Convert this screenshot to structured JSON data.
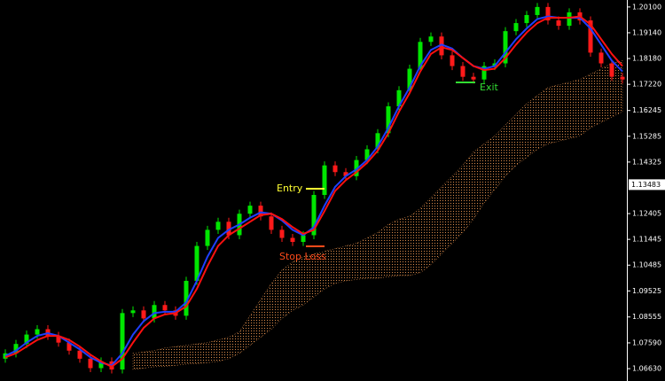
{
  "chart_data": {
    "type": "candlestick",
    "ylim": [
      1.0617,
      1.2036
    ],
    "yticks": [
      {
        "value": 1.201,
        "label": "1.20100"
      },
      {
        "value": 1.1914,
        "label": "1.19140"
      },
      {
        "value": 1.1818,
        "label": "1.18180"
      },
      {
        "value": 1.1722,
        "label": "1.17220"
      },
      {
        "value": 1.16245,
        "label": "1.16245"
      },
      {
        "value": 1.15285,
        "label": "1.15285"
      },
      {
        "value": 1.14325,
        "label": "1.14325"
      },
      {
        "value": 1.12405,
        "label": "1.12405"
      },
      {
        "value": 1.11445,
        "label": "1.11445"
      },
      {
        "value": 1.10485,
        "label": "1.10485"
      },
      {
        "value": 1.09525,
        "label": "1.09525"
      },
      {
        "value": 1.08555,
        "label": "1.08555"
      },
      {
        "value": 1.0759,
        "label": "1.07590"
      },
      {
        "value": 1.0663,
        "label": "1.06630"
      }
    ],
    "current_price": {
      "value": 1.13483,
      "label": "1.13483"
    },
    "up_color": "#00e600",
    "down_color": "#ff1a1a",
    "open": [
      1.07,
      1.072,
      1.0755,
      1.079,
      1.081,
      1.0785,
      1.076,
      1.073,
      1.07,
      1.0665,
      1.069,
      1.066,
      1.087,
      1.088,
      1.085,
      1.09,
      1.088,
      1.086,
      1.099,
      1.112,
      1.118,
      1.121,
      1.116,
      1.124,
      1.127,
      1.123,
      1.118,
      1.115,
      1.1135,
      1.116,
      1.131,
      1.142,
      1.1395,
      1.138,
      1.144,
      1.148,
      1.154,
      1.164,
      1.17,
      1.178,
      1.188,
      1.19,
      1.183,
      1.179,
      1.175,
      1.174,
      1.179,
      1.18,
      1.192,
      1.195,
      1.198,
      1.201,
      1.196,
      1.194,
      1.199,
      1.196,
      1.184,
      1.18,
      1.175
    ],
    "high": [
      1.0735,
      1.077,
      1.0805,
      1.0825,
      1.0825,
      1.08,
      1.0775,
      1.0745,
      1.0715,
      1.0705,
      1.0705,
      1.0885,
      1.0895,
      1.0895,
      1.0915,
      1.0915,
      1.0895,
      1.1005,
      1.1135,
      1.1195,
      1.1225,
      1.1225,
      1.1255,
      1.1285,
      1.1285,
      1.1245,
      1.1195,
      1.1165,
      1.1175,
      1.1325,
      1.1435,
      1.1435,
      1.141,
      1.1455,
      1.1495,
      1.1555,
      1.1655,
      1.1715,
      1.1795,
      1.1895,
      1.1915,
      1.1915,
      1.1845,
      1.1805,
      1.1765,
      1.1805,
      1.1815,
      1.1935,
      1.1965,
      1.1995,
      1.2025,
      1.2025,
      1.1975,
      1.2005,
      1.2005,
      1.1975,
      1.1855,
      1.1815,
      1.1765
    ],
    "low": [
      1.0685,
      1.0705,
      1.074,
      1.0775,
      1.077,
      1.0745,
      1.0715,
      1.0685,
      1.065,
      1.065,
      1.0645,
      1.0645,
      1.0855,
      1.0835,
      1.0835,
      1.0865,
      1.0845,
      1.0845,
      1.0975,
      1.1105,
      1.1165,
      1.1145,
      1.1145,
      1.1225,
      1.1215,
      1.1165,
      1.1135,
      1.112,
      1.112,
      1.1145,
      1.1295,
      1.138,
      1.1365,
      1.1365,
      1.1425,
      1.1465,
      1.1525,
      1.1625,
      1.1685,
      1.1765,
      1.1865,
      1.1815,
      1.1775,
      1.1735,
      1.1725,
      1.1725,
      1.1775,
      1.1785,
      1.1905,
      1.1935,
      1.1965,
      1.1945,
      1.1925,
      1.1925,
      1.1945,
      1.1825,
      1.1785,
      1.1735,
      1.1725
    ],
    "close": [
      1.072,
      1.0755,
      1.079,
      1.081,
      1.0785,
      1.076,
      1.073,
      1.07,
      1.0665,
      1.069,
      1.066,
      1.087,
      1.088,
      1.085,
      1.09,
      1.088,
      1.086,
      1.099,
      1.112,
      1.118,
      1.121,
      1.116,
      1.124,
      1.127,
      1.123,
      1.118,
      1.115,
      1.1135,
      1.116,
      1.131,
      1.142,
      1.1395,
      1.138,
      1.144,
      1.148,
      1.154,
      1.164,
      1.17,
      1.178,
      1.188,
      1.19,
      1.183,
      1.179,
      1.175,
      1.174,
      1.179,
      1.18,
      1.192,
      1.195,
      1.198,
      1.201,
      1.196,
      1.194,
      1.199,
      1.196,
      1.184,
      1.18,
      1.175,
      1.174
    ],
    "lines": [
      {
        "color": "#1f3fff",
        "values": [
          1.071,
          1.073,
          1.076,
          1.0785,
          1.0795,
          1.0785,
          1.076,
          1.0735,
          1.0705,
          1.0685,
          1.0675,
          1.072,
          1.079,
          1.084,
          1.087,
          1.0875,
          1.0875,
          1.091,
          1.099,
          1.108,
          1.115,
          1.118,
          1.12,
          1.1225,
          1.1245,
          1.124,
          1.1215,
          1.118,
          1.116,
          1.119,
          1.127,
          1.134,
          1.138,
          1.1405,
          1.144,
          1.149,
          1.156,
          1.164,
          1.171,
          1.179,
          1.185,
          1.187,
          1.1855,
          1.182,
          1.179,
          1.178,
          1.179,
          1.184,
          1.189,
          1.193,
          1.1965,
          1.1975,
          1.197,
          1.197,
          1.197,
          1.193,
          1.187,
          1.181,
          1.177
        ]
      },
      {
        "color": "#ff1010",
        "values": [
          1.0705,
          1.072,
          1.0745,
          1.077,
          1.0785,
          1.0785,
          1.077,
          1.0745,
          1.0715,
          1.069,
          1.067,
          1.07,
          1.076,
          1.0815,
          1.085,
          1.0865,
          1.087,
          1.0895,
          1.096,
          1.1045,
          1.112,
          1.116,
          1.1185,
          1.121,
          1.1235,
          1.124,
          1.122,
          1.119,
          1.1165,
          1.118,
          1.125,
          1.1325,
          1.1365,
          1.1395,
          1.143,
          1.1475,
          1.154,
          1.162,
          1.169,
          1.177,
          1.1835,
          1.186,
          1.185,
          1.182,
          1.179,
          1.1775,
          1.178,
          1.182,
          1.187,
          1.1915,
          1.195,
          1.197,
          1.197,
          1.197,
          1.1975,
          1.1945,
          1.189,
          1.1835,
          1.179
        ]
      }
    ],
    "cloud": {
      "color": "#d98a4a",
      "upper": [
        null,
        null,
        null,
        null,
        null,
        null,
        null,
        null,
        null,
        null,
        null,
        null,
        1.072,
        1.0725,
        1.073,
        1.074,
        1.0745,
        1.075,
        1.0755,
        1.076,
        1.077,
        1.078,
        1.08,
        1.086,
        1.092,
        1.098,
        1.103,
        1.106,
        1.108,
        1.109,
        1.11,
        1.111,
        1.112,
        1.113,
        1.115,
        1.117,
        1.12,
        1.122,
        1.123,
        1.126,
        1.13,
        1.134,
        1.138,
        1.142,
        1.147,
        1.15,
        1.153,
        1.157,
        1.161,
        1.165,
        1.168,
        1.171,
        1.172,
        1.173,
        1.174,
        1.176,
        1.178,
        1.18,
        1.181
      ],
      "lower": [
        null,
        null,
        null,
        null,
        null,
        null,
        null,
        null,
        null,
        null,
        null,
        null,
        1.066,
        1.0665,
        1.067,
        1.0672,
        1.0675,
        1.068,
        1.0682,
        1.0685,
        1.069,
        1.07,
        1.072,
        1.075,
        1.078,
        1.081,
        1.085,
        1.088,
        1.09,
        1.093,
        1.096,
        1.098,
        1.099,
        1.0995,
        1.1,
        1.1,
        1.1005,
        1.101,
        1.101,
        1.102,
        1.105,
        1.109,
        1.113,
        1.117,
        1.122,
        1.128,
        1.133,
        1.138,
        1.142,
        1.145,
        1.148,
        1.15,
        1.151,
        1.152,
        1.153,
        1.156,
        1.158,
        1.16,
        1.162
      ]
    },
    "annotations": [
      {
        "text": "Entry",
        "color": "#ffff33"
      },
      {
        "text": "Stop Loss",
        "color": "#ff4a1a"
      },
      {
        "text": "Exit",
        "color": "#33dd33"
      }
    ]
  }
}
